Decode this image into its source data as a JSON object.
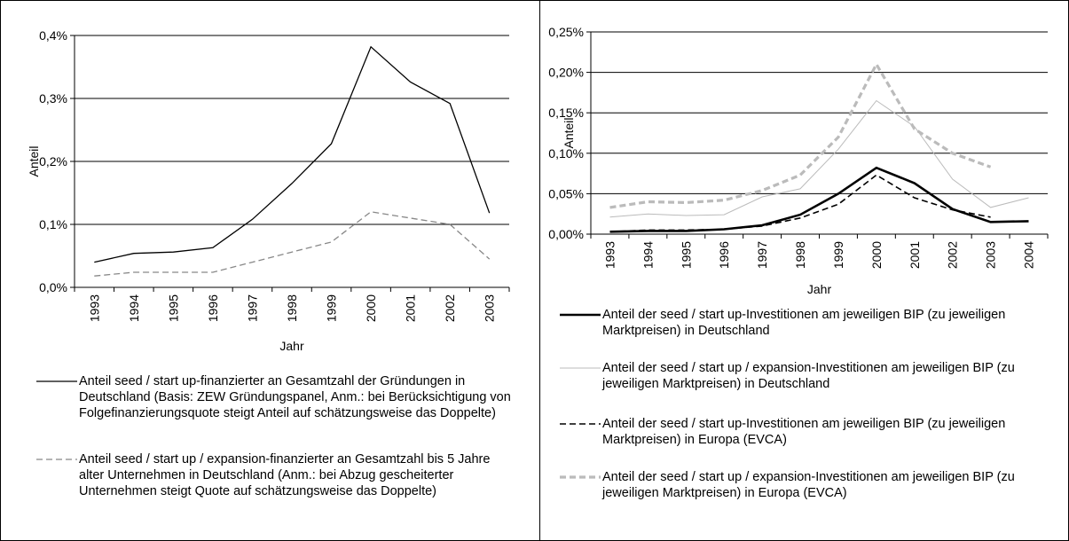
{
  "chart_data": [
    {
      "type": "line",
      "y_label": "Anteil",
      "x_label": "Jahr",
      "categories": [
        "1993",
        "1994",
        "1995",
        "1996",
        "1997",
        "1998",
        "1999",
        "2000",
        "2001",
        "2002",
        "2003"
      ],
      "ylim": [
        0,
        0.4
      ],
      "yticks": [
        {
          "value": 0,
          "label": "0,0%"
        },
        {
          "value": 0.1,
          "label": "0,1%"
        },
        {
          "value": 0.2,
          "label": "0,2%"
        },
        {
          "value": 0.3,
          "label": "0,3%"
        },
        {
          "value": 0.4,
          "label": "0,4%"
        }
      ],
      "grid": true,
      "series": [
        {
          "name": "Anteil seed / start up-finanzierter an Gesamtzahl der Gründungen in Deutschland (Basis: ZEW Gründungspanel, Anm.: bei Berücksichtigung von Folgefinanzierungsquote steigt Anteil auf schätzungsweise das Doppelte)",
          "color": "#000000",
          "dash": "solid",
          "values": [
            0.04,
            0.054,
            0.056,
            0.063,
            0.108,
            0.165,
            0.228,
            0.382,
            0.326,
            0.292,
            0.118
          ]
        },
        {
          "name": "Anteil seed / start up / expansion-finanzierter an Gesamtzahl bis 5 Jahre alter Unternehmen in Deutschland (Anm.: bei Abzug gescheiterter Unternehmen steigt Quote auf schätzungsweise das Doppelte)",
          "color": "#888888",
          "dash": "dashed",
          "values": [
            0.018,
            0.024,
            0.024,
            0.024,
            0.04,
            0.056,
            0.072,
            0.12,
            0.11,
            0.1,
            0.045
          ]
        }
      ]
    },
    {
      "type": "line",
      "y_label": "Anteil",
      "x_label": "Jahr",
      "categories": [
        "1993",
        "1994",
        "1995",
        "1996",
        "1997",
        "1998",
        "1999",
        "2000",
        "2001",
        "2002",
        "2003",
        "2004"
      ],
      "ylim": [
        0,
        0.25
      ],
      "yticks": [
        {
          "value": 0,
          "label": "0,00%"
        },
        {
          "value": 0.05,
          "label": "0,05%"
        },
        {
          "value": 0.1,
          "label": "0,10%"
        },
        {
          "value": 0.15,
          "label": "0,15%"
        },
        {
          "value": 0.2,
          "label": "0,20%"
        },
        {
          "value": 0.25,
          "label": "0,25%"
        }
      ],
      "grid": true,
      "series": [
        {
          "name": "Anteil der seed / start up-Investitionen am jeweiligen BIP (zu jeweiligen Marktpreisen) in Deutschland",
          "color": "#000000",
          "dash": "solid",
          "values": [
            0.003,
            0.004,
            0.004,
            0.006,
            0.011,
            0.024,
            0.05,
            0.082,
            0.063,
            0.031,
            0.015,
            0.016
          ]
        },
        {
          "name": "Anteil der seed / start up / expansion-Investitionen am jeweiligen BIP (zu jeweiligen Marktpreisen) in Deutschland",
          "color": "#bbbbbb",
          "dash": "solid",
          "values": [
            0.021,
            0.025,
            0.023,
            0.024,
            0.046,
            0.056,
            0.105,
            0.165,
            0.133,
            0.068,
            0.033,
            0.045
          ]
        },
        {
          "name": "Anteil der seed / start up-Investitionen am jeweiligen BIP (zu jeweiligen Marktpreisen) in Europa (EVCA)",
          "color": "#000000",
          "dash": "dashed",
          "values": [
            0.003,
            0.005,
            0.005,
            0.006,
            0.01,
            0.02,
            0.037,
            0.073,
            0.045,
            0.03,
            0.021,
            null
          ]
        },
        {
          "name": "Anteil der seed / start up / expansion-Investitionen am jeweiligen BIP (zu jeweiligen Marktpreisen) in Europa (EVCA)",
          "color": "#bbbbbb",
          "dash": "dashed",
          "values": [
            0.033,
            0.04,
            0.039,
            0.042,
            0.054,
            0.073,
            0.12,
            0.21,
            0.13,
            0.1,
            0.083,
            null
          ]
        }
      ]
    }
  ]
}
